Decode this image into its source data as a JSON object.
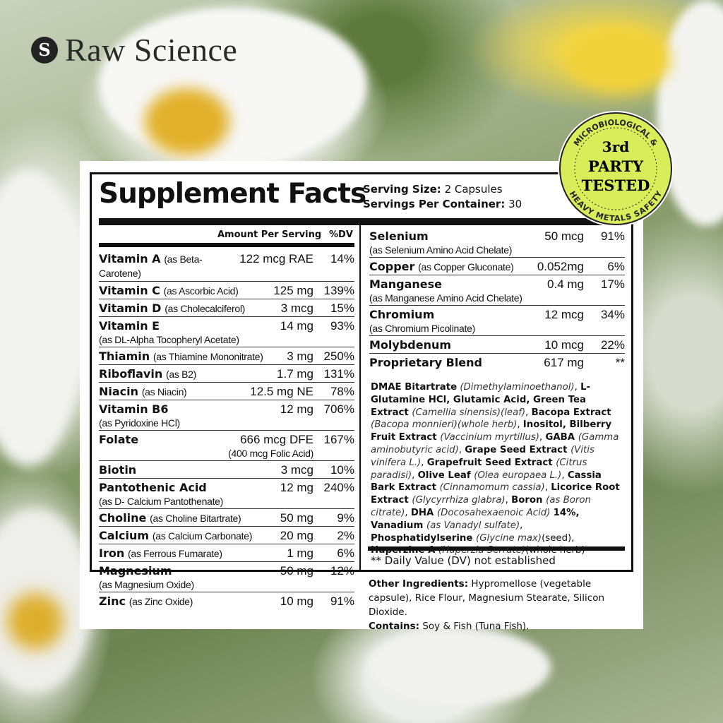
{
  "brand": {
    "name": "Raw Science",
    "mark": "S"
  },
  "badge": {
    "top_arc": "MICROBIOLOGICAL &",
    "bottom_arc": "HEAVY METALS SAFETY",
    "line1": "3rd",
    "line2": "PARTY",
    "line3": "TESTED",
    "color": "#d9ec5a"
  },
  "label": {
    "title": "Supplement Facts",
    "serving_size_label": "Serving Size:",
    "serving_size": "2 Capsules",
    "servings_label": "Servings Per Container:",
    "servings": "30",
    "col_amount": "Amount Per Serving",
    "col_dv": "%DV",
    "left_rows": [
      {
        "name": "Vitamin A",
        "detail": "(as Beta-Carotene)",
        "amount": "122 mcg RAE",
        "dv": "14%"
      },
      {
        "name": "Vitamin C",
        "detail": "(as Ascorbic Acid)",
        "amount": "125 mg",
        "dv": "139%"
      },
      {
        "name": "Vitamin D",
        "detail": "(as Cholecalciferol)",
        "amount": "3 mcg",
        "dv": "15%"
      },
      {
        "name": "Vitamin E",
        "sub": "(as DL-Alpha Tocopheryl Acetate)",
        "amount": "14 mg",
        "dv": "93%"
      },
      {
        "name": "Thiamin",
        "detail": "(as Thiamine Mononitrate)",
        "amount": "3 mg",
        "dv": "250%"
      },
      {
        "name": "Riboflavin",
        "detail": "(as B2)",
        "amount": "1.7 mg",
        "dv": "131%"
      },
      {
        "name": "Niacin",
        "detail": "(as Niacin)",
        "amount": "12.5 mg NE",
        "dv": "78%"
      },
      {
        "name": "Vitamin B6",
        "sub": "(as Pyridoxine HCl)",
        "amount": "12 mg",
        "dv": "706%"
      },
      {
        "name": "Folate",
        "amount": "666 mcg DFE",
        "amount_sub": "(400 mcg Folic Acid)",
        "dv": "167%"
      },
      {
        "name": "Biotin",
        "amount": "3 mcg",
        "dv": "10%"
      },
      {
        "name": "Pantothenic Acid",
        "sub": "(as D- Calcium Pantothenate)",
        "amount": "12 mg",
        "dv": "240%"
      },
      {
        "name": "Choline",
        "detail": "(as Choline Bitartrate)",
        "amount": "50 mg",
        "dv": "9%"
      },
      {
        "name": "Calcium",
        "detail": "(as Calcium Carbonate)",
        "amount": "20 mg",
        "dv": "2%"
      },
      {
        "name": "Iron",
        "detail": "(as Ferrous Fumarate)",
        "amount": "1 mg",
        "dv": "6%"
      },
      {
        "name": "Magnesium",
        "sub": "(as Magnesium Oxide)",
        "amount": "50 mg",
        "dv": "12%"
      },
      {
        "name": "Zinc",
        "detail": "(as Zinc Oxide)",
        "amount": "10 mg",
        "dv": "91%"
      }
    ],
    "right_rows": [
      {
        "name": "Selenium",
        "sub": "(as Selenium Amino Acid Chelate)",
        "amount": "50 mcg",
        "dv": "91%"
      },
      {
        "name": "Copper",
        "detail": "(as Copper Gluconate)",
        "amount": "0.052mg",
        "dv": "6%"
      },
      {
        "name": "Manganese",
        "sub": "(as Manganese Amino Acid Chelate)",
        "amount": "0.4 mg",
        "dv": "17%"
      },
      {
        "name": "Chromium",
        "sub": "(as Chromium Picolinate)",
        "amount": "12 mcg",
        "dv": "34%"
      },
      {
        "name": "Molybdenum",
        "amount": "10 mcg",
        "dv": "22%"
      },
      {
        "name": "Proprietary Blend",
        "amount": "617 mg",
        "dv": "**"
      }
    ],
    "blend": [
      [
        "b",
        "DMAE Bitartrate"
      ],
      [
        "i",
        " (Dimethylaminoethanol)"
      ],
      [
        "t",
        ", "
      ],
      [
        "b",
        "L-Glutamine HCl, Glutamic Acid, Green Tea Extract "
      ],
      [
        "i",
        "(Camellia sinensis)(leaf)"
      ],
      [
        "t",
        ", "
      ],
      [
        "b",
        "Bacopa Extract "
      ],
      [
        "i",
        "(Bacopa monnieri)(whole herb)"
      ],
      [
        "t",
        ", "
      ],
      [
        "b",
        "Inositol, Bilberry Fruit Extract "
      ],
      [
        "i",
        "(Vaccinium myrtillus)"
      ],
      [
        "t",
        ", "
      ],
      [
        "b",
        "GABA "
      ],
      [
        "i",
        "(Gamma aminobutyric acid)"
      ],
      [
        "t",
        ", "
      ],
      [
        "b",
        "Grape Seed Extract "
      ],
      [
        "i",
        "(Vitis vinifera L.)"
      ],
      [
        "t",
        ", "
      ],
      [
        "b",
        "Grapefruit Seed Extract "
      ],
      [
        "i",
        "(Citrus paradisi)"
      ],
      [
        "t",
        ", "
      ],
      [
        "b",
        "Olive Leaf "
      ],
      [
        "i",
        "(Olea europaea L.)"
      ],
      [
        "t",
        ", "
      ],
      [
        "b",
        "Cassia Bark Extract "
      ],
      [
        "i",
        "(Cinnamomum cassia)"
      ],
      [
        "t",
        ", "
      ],
      [
        "b",
        "Licorice Root Extract "
      ],
      [
        "i",
        "(Glycyrrhiza glabra)"
      ],
      [
        "t",
        ", "
      ],
      [
        "b",
        "Boron "
      ],
      [
        "i",
        "(as Boron citrate)"
      ],
      [
        "t",
        ", "
      ],
      [
        "b",
        "DHA "
      ],
      [
        "i",
        "(Docosahexaenoic Acid) "
      ],
      [
        "b",
        "14%, Vanadium "
      ],
      [
        "i",
        "(as Vanadyl sulfate)"
      ],
      [
        "t",
        ", "
      ],
      [
        "b",
        "Phosphatidylserine "
      ],
      [
        "i",
        "(Glycine max)"
      ],
      [
        "t",
        "(seed), "
      ],
      [
        "b",
        "Huperzine A "
      ],
      [
        "i",
        "(Huperzia Serrate)"
      ],
      [
        "t",
        "(whole herb)"
      ]
    ],
    "dv_note": "** Daily Value (DV) not established",
    "other_label": "Other Ingredients:",
    "other": "Hypromellose (vegetable capsule), Rice Flour, Magnesium Stearate, Silicon Dioxide.",
    "contains_label": "Contains:",
    "contains": "Soy & Fish (Tuna Fish)."
  }
}
